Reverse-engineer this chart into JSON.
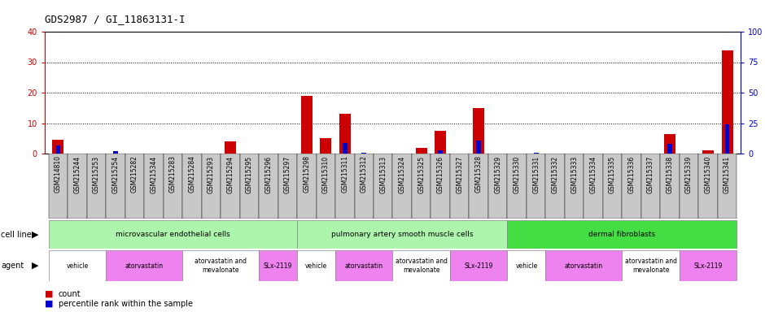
{
  "title": "GDS2987 / GI_11863131-I",
  "samples": [
    "GSM214810",
    "GSM215244",
    "GSM215253",
    "GSM215254",
    "GSM215282",
    "GSM215344",
    "GSM215283",
    "GSM215284",
    "GSM215293",
    "GSM215294",
    "GSM215295",
    "GSM215296",
    "GSM215297",
    "GSM215298",
    "GSM215310",
    "GSM215311",
    "GSM215312",
    "GSM215313",
    "GSM215324",
    "GSM215325",
    "GSM215326",
    "GSM215327",
    "GSM215328",
    "GSM215329",
    "GSM215330",
    "GSM215331",
    "GSM215332",
    "GSM215333",
    "GSM215334",
    "GSM215335",
    "GSM215336",
    "GSM215337",
    "GSM215338",
    "GSM215339",
    "GSM215340",
    "GSM215341"
  ],
  "red_values": [
    4.5,
    0,
    0,
    0,
    0,
    0,
    0,
    0,
    0,
    4.0,
    0,
    0,
    0,
    19.0,
    5.0,
    13.0,
    0,
    0,
    0,
    2.0,
    7.5,
    0,
    15.0,
    0,
    0,
    0,
    0,
    0,
    0,
    0,
    0,
    0,
    6.5,
    0,
    1.0,
    34.0
  ],
  "blue_values": [
    7.0,
    0,
    0,
    2.0,
    0,
    0,
    0,
    0,
    0,
    0,
    0,
    0,
    0,
    0,
    0,
    8.5,
    1.0,
    0,
    0,
    0,
    2.5,
    0,
    11.0,
    0,
    0,
    1.0,
    0,
    0,
    0,
    0,
    0,
    0,
    8.0,
    0,
    0,
    24.0
  ],
  "red_scale": 40,
  "blue_scale": 100,
  "cell_lines": [
    {
      "label": "microvascular endothelial cells",
      "start": 0,
      "end": 13,
      "color": "#adf5ad"
    },
    {
      "label": "pulmonary artery smooth muscle cells",
      "start": 13,
      "end": 24,
      "color": "#adf5ad"
    },
    {
      "label": "dermal fibroblasts",
      "start": 24,
      "end": 36,
      "color": "#44dd44"
    }
  ],
  "agents": [
    {
      "label": "vehicle",
      "start": 0,
      "end": 3,
      "color": "#FFFFFF"
    },
    {
      "label": "atorvastatin",
      "start": 3,
      "end": 7,
      "color": "#EE82EE"
    },
    {
      "label": "atorvastatin and\nmevalonate",
      "start": 7,
      "end": 11,
      "color": "#FFFFFF"
    },
    {
      "label": "SLx-2119",
      "start": 11,
      "end": 13,
      "color": "#EE82EE"
    },
    {
      "label": "vehicle",
      "start": 13,
      "end": 15,
      "color": "#FFFFFF"
    },
    {
      "label": "atorvastatin",
      "start": 15,
      "end": 18,
      "color": "#EE82EE"
    },
    {
      "label": "atorvastatin and\nmevalonate",
      "start": 18,
      "end": 21,
      "color": "#FFFFFF"
    },
    {
      "label": "SLx-2119",
      "start": 21,
      "end": 24,
      "color": "#EE82EE"
    },
    {
      "label": "vehicle",
      "start": 24,
      "end": 26,
      "color": "#FFFFFF"
    },
    {
      "label": "atorvastatin",
      "start": 26,
      "end": 30,
      "color": "#EE82EE"
    },
    {
      "label": "atorvastatin and\nmevalonate",
      "start": 30,
      "end": 33,
      "color": "#FFFFFF"
    },
    {
      "label": "SLx-2119",
      "start": 33,
      "end": 36,
      "color": "#EE82EE"
    }
  ],
  "bar_color_red": "#CC0000",
  "bar_color_blue": "#0000CC",
  "bg_color": "#FFFFFF",
  "tick_color_left": "#CC0000",
  "tick_color_right": "#0000CC",
  "yticks_left": [
    0,
    10,
    20,
    30,
    40
  ],
  "yticks_right": [
    0,
    25,
    50,
    75,
    100
  ],
  "grid_yticks": [
    10,
    20,
    30
  ],
  "xlabel_gray": "#C8C8C8"
}
